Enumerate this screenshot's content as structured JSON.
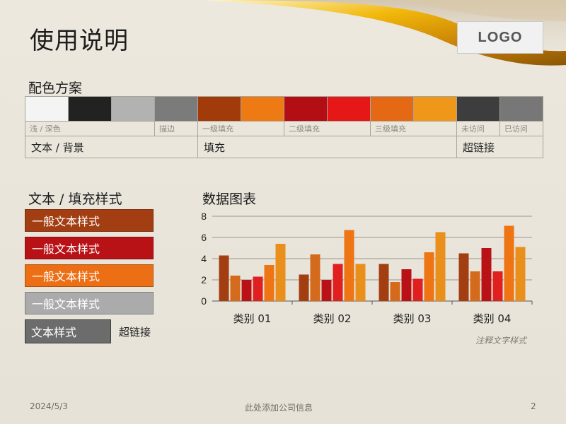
{
  "title": "使用说明",
  "logo": "LOGO",
  "color_scheme": {
    "label": "配色方案",
    "swatches": [
      "#f4f4f4",
      "#222222",
      "#b2b2b2",
      "#7b7b7b",
      "#a23b0a",
      "#ee7a14",
      "#b20e14",
      "#e51717",
      "#e56915",
      "#ef9718",
      "#3d3d3d",
      "#777777"
    ],
    "sub_labels": [
      "浅 / 深色",
      "描边",
      "一级填充",
      "二级填充",
      "三级填充",
      "未访问",
      "已访问"
    ],
    "main_labels": [
      "文本 / 背景",
      "填充",
      "超链接"
    ]
  },
  "text_fill_styles": {
    "label": "文本 / 填充样式",
    "boxes": [
      {
        "text": "一般文本样式",
        "color": "#a33d12"
      },
      {
        "text": "一般文本样式",
        "color": "#b81217"
      },
      {
        "text": "一般文本样式",
        "color": "#ec6f16"
      },
      {
        "text": "一般文本样式",
        "color": "#ababab"
      }
    ],
    "text_style": "文本样式",
    "hyperlink": "超链接"
  },
  "chart_title": "数据图表",
  "chart_data": {
    "type": "bar",
    "categories": [
      "类别 01",
      "类别 02",
      "类别 03",
      "类别 04"
    ],
    "series": [
      {
        "color": "#a33d12",
        "values": [
          4.3,
          2.5,
          3.5,
          4.5
        ]
      },
      {
        "color": "#d46a1c",
        "values": [
          2.4,
          4.4,
          1.8,
          2.8
        ]
      },
      {
        "color": "#b81217",
        "values": [
          2.0,
          2.0,
          3.0,
          5.0
        ]
      },
      {
        "color": "#e01f1f",
        "values": [
          2.3,
          3.5,
          2.1,
          2.8
        ]
      },
      {
        "color": "#ee7414",
        "values": [
          3.4,
          6.7,
          4.6,
          7.1
        ]
      },
      {
        "color": "#e9901c",
        "values": [
          5.4,
          3.5,
          6.5,
          5.1
        ]
      }
    ],
    "ylim": [
      0,
      8
    ],
    "yticks": [
      "0",
      "2",
      "4",
      "6",
      "8"
    ],
    "grid": true
  },
  "note": "注释文字样式",
  "footer": {
    "date": "2024/5/3",
    "company": "此处添加公司信息",
    "page": "2"
  }
}
